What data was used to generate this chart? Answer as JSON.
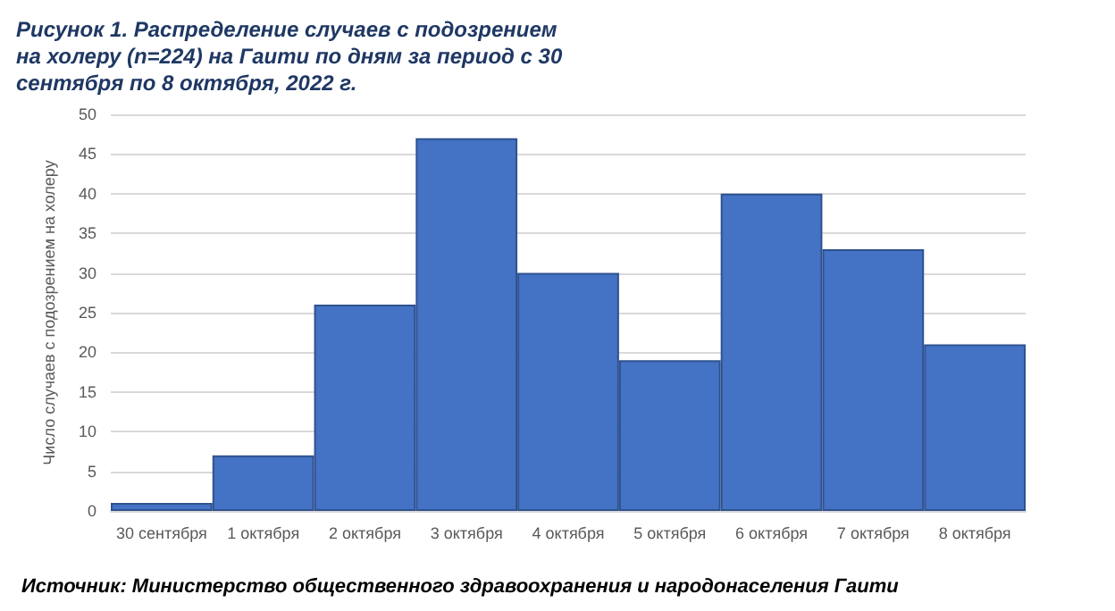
{
  "chart_data": {
    "type": "bar",
    "title": "Рисунок 1. Распределение случаев с подозрением на холеру (n=224) на Гаити по дням за период с 30 сентября по 8 октября, 2022 г.",
    "ylabel": "Число случаев с подозрением на холеру",
    "categories": [
      "30 сентября",
      "1 октября",
      "2 октября",
      "3 октября",
      "4 октября",
      "5 октября",
      "6 октября",
      "7 октября",
      "8 октября"
    ],
    "values": [
      1,
      7,
      26,
      47,
      30,
      19,
      40,
      33,
      21
    ],
    "color": "#4472c4",
    "ylim": [
      0,
      50
    ],
    "yticks": [
      0,
      5,
      10,
      15,
      20,
      25,
      30,
      35,
      40,
      45,
      50
    ],
    "grid": "y",
    "annotations": [
      "Источник: Министерство общественного здравоохранения и народонаселения Гаити"
    ]
  }
}
